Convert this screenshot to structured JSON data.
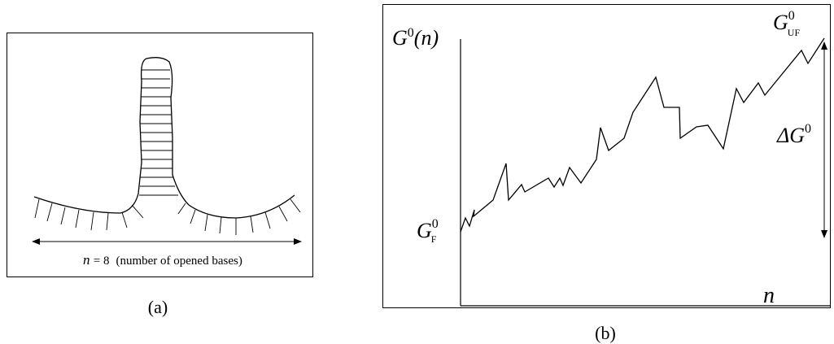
{
  "panel_a": {
    "count_symbol": "n",
    "count_value": "= 8",
    "count_note": "(number of opened bases)",
    "caption": "(a)"
  },
  "panel_b": {
    "y_label": {
      "symbol": "G",
      "sup": "0",
      "arg": "(n)"
    },
    "x_label": "n",
    "unfolded": {
      "symbol": "G",
      "sup": "0",
      "sub": "UF"
    },
    "folded": {
      "symbol": "G",
      "sup": "0",
      "sub": "F"
    },
    "delta": {
      "symbol": "ΔG",
      "sup": "0"
    },
    "caption": "(b)"
  }
}
